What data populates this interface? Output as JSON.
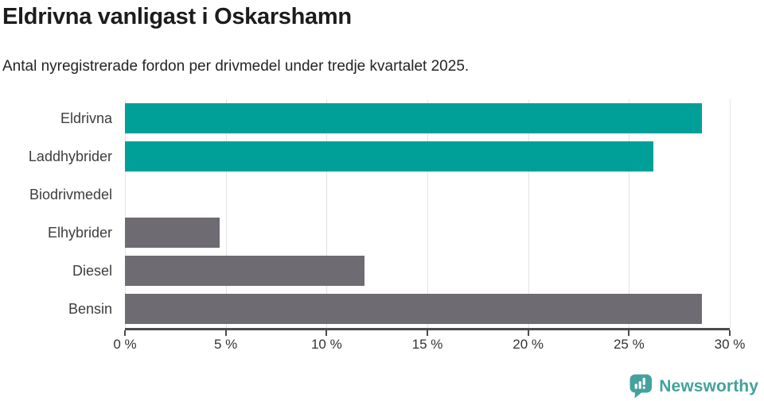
{
  "header": {
    "title": "Eldrivna vanligast i Oskarshamn",
    "subtitle": "Antal nyregistrerade fordon per drivmedel under tredje kvartalet 2025."
  },
  "chart_data": {
    "type": "bar",
    "orientation": "horizontal",
    "categories": [
      "Eldrivna",
      "Laddhybrider",
      "Biodrivmedel",
      "Elhybrider",
      "Diesel",
      "Bensin"
    ],
    "values": [
      28.6,
      26.2,
      0,
      4.7,
      11.9,
      28.6
    ],
    "unit": "%",
    "bar_colors": [
      "#00a099",
      "#00a099",
      "#6f6b72",
      "#6f6b72",
      "#6f6b72",
      "#6f6b72"
    ],
    "highlight_color": "#00a099",
    "default_color": "#6f6b72",
    "xlim": [
      0,
      30
    ],
    "x_ticks": [
      0,
      5,
      10,
      15,
      20,
      25,
      30
    ],
    "x_tick_labels": [
      "0 %",
      "5 %",
      "10 %",
      "15 %",
      "20 %",
      "25 %",
      "30 %"
    ],
    "grid": true,
    "legend_position": "none",
    "title": "Eldrivna vanligast i Oskarshamn",
    "xlabel": "",
    "ylabel": ""
  },
  "footer": {
    "brand": "Newsworthy",
    "brand_color": "#44a19d",
    "icon": "newsworthy-logo-icon"
  }
}
